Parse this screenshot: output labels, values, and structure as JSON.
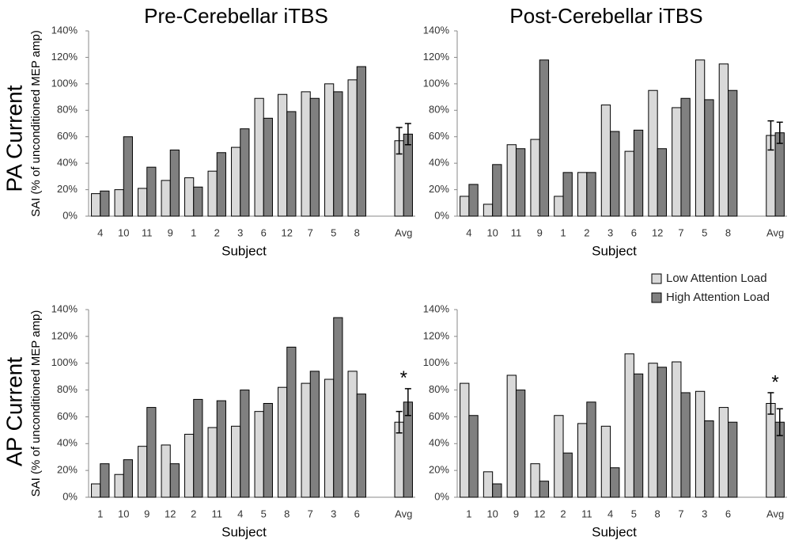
{
  "row_labels": [
    "PA Current",
    "AP Current"
  ],
  "chart_data": [
    {
      "type": "bar",
      "title": "Pre-Cerebellar iTBS",
      "xlabel": "Subject",
      "ylabel": "SAI (% of unconditioned MEP amp)",
      "categories": [
        "4",
        "10",
        "11",
        "9",
        "1",
        "2",
        "3",
        "6",
        "12",
        "7",
        "5",
        "8",
        null,
        "Avg"
      ],
      "series": [
        {
          "color": "#d9d9d9",
          "values": [
            17,
            20,
            21,
            27,
            29,
            34,
            52,
            89,
            92,
            94,
            100,
            103,
            null,
            57
          ],
          "errors": [
            null,
            null,
            null,
            null,
            null,
            null,
            null,
            null,
            null,
            null,
            null,
            null,
            null,
            10
          ]
        },
        {
          "color": "#808080",
          "values": [
            19,
            60,
            37,
            50,
            22,
            48,
            66,
            74,
            79,
            89,
            94,
            113,
            null,
            62
          ],
          "errors": [
            null,
            null,
            null,
            null,
            null,
            null,
            null,
            null,
            null,
            null,
            null,
            null,
            null,
            8
          ]
        }
      ],
      "ylim": [
        0,
        140
      ],
      "yticks": [
        {
          "value": 0,
          "label": "0%"
        },
        {
          "value": 20,
          "label": "20%"
        },
        {
          "value": 40,
          "label": "40%"
        },
        {
          "value": 60,
          "label": "60%"
        },
        {
          "value": 80,
          "label": "80%"
        },
        {
          "value": 100,
          "label": "100%"
        },
        {
          "value": 120,
          "label": "120%"
        },
        {
          "value": 140,
          "label": "140%"
        }
      ]
    },
    {
      "type": "bar",
      "title": "Post-Cerebellar iTBS",
      "xlabel": "Subject",
      "categories": [
        "4",
        "10",
        "11",
        "9",
        "1",
        "2",
        "3",
        "6",
        "12",
        "7",
        "5",
        "8",
        null,
        "Avg"
      ],
      "series": [
        {
          "color": "#d9d9d9",
          "values": [
            15,
            9,
            54,
            58,
            15,
            33,
            84,
            49,
            95,
            82,
            118,
            115,
            null,
            61
          ],
          "errors": [
            null,
            null,
            null,
            null,
            null,
            null,
            null,
            null,
            null,
            null,
            null,
            null,
            null,
            11
          ]
        },
        {
          "color": "#808080",
          "values": [
            24,
            39,
            51,
            118,
            33,
            33,
            64,
            65,
            51,
            89,
            88,
            95,
            null,
            63
          ],
          "errors": [
            null,
            null,
            null,
            null,
            null,
            null,
            null,
            null,
            null,
            null,
            null,
            null,
            null,
            8
          ]
        }
      ],
      "ylim": [
        0,
        140
      ],
      "yticks": [
        {
          "value": 0,
          "label": "0%"
        },
        {
          "value": 20,
          "label": "20%"
        },
        {
          "value": 40,
          "label": "40%"
        },
        {
          "value": 60,
          "label": "60%"
        },
        {
          "value": 80,
          "label": "80%"
        },
        {
          "value": 100,
          "label": "100%"
        },
        {
          "value": 120,
          "label": "120%"
        },
        {
          "value": 140,
          "label": "140%"
        }
      ]
    },
    {
      "type": "bar",
      "xlabel": "Subject",
      "ylabel": "SAI (% of unconditioned MEP amp)",
      "annotation": "*",
      "categories": [
        "1",
        "10",
        "9",
        "12",
        "2",
        "11",
        "4",
        "5",
        "8",
        "7",
        "3",
        "6",
        null,
        "Avg"
      ],
      "series": [
        {
          "color": "#d9d9d9",
          "values": [
            10,
            17,
            38,
            39,
            47,
            52,
            53,
            64,
            82,
            85,
            88,
            94,
            null,
            56
          ],
          "errors": [
            null,
            null,
            null,
            null,
            null,
            null,
            null,
            null,
            null,
            null,
            null,
            null,
            null,
            8
          ]
        },
        {
          "color": "#808080",
          "values": [
            25,
            28,
            67,
            25,
            73,
            72,
            80,
            70,
            112,
            94,
            134,
            77,
            null,
            71
          ],
          "errors": [
            null,
            null,
            null,
            null,
            null,
            null,
            null,
            null,
            null,
            null,
            null,
            null,
            null,
            10
          ]
        }
      ],
      "ylim": [
        0,
        140
      ],
      "yticks": [
        {
          "value": 0,
          "label": "0%"
        },
        {
          "value": 20,
          "label": "20%"
        },
        {
          "value": 40,
          "label": "40%"
        },
        {
          "value": 60,
          "label": "60%"
        },
        {
          "value": 80,
          "label": "80%"
        },
        {
          "value": 100,
          "label": "100%"
        },
        {
          "value": 120,
          "label": "120%"
        },
        {
          "value": 140,
          "label": "140%"
        }
      ]
    },
    {
      "type": "bar",
      "xlabel": "Subject",
      "annotation": "*",
      "legend": "above",
      "categories": [
        "1",
        "10",
        "9",
        "12",
        "2",
        "11",
        "4",
        "5",
        "8",
        "7",
        "3",
        "6",
        null,
        "Avg"
      ],
      "series": [
        {
          "name": "Low Attention Load",
          "color": "#d9d9d9",
          "values": [
            85,
            19,
            91,
            25,
            61,
            55,
            53,
            107,
            100,
            101,
            79,
            67,
            null,
            70
          ],
          "errors": [
            null,
            null,
            null,
            null,
            null,
            null,
            null,
            null,
            null,
            null,
            null,
            null,
            null,
            8
          ]
        },
        {
          "name": "High Attention Load",
          "color": "#808080",
          "values": [
            61,
            10,
            80,
            12,
            33,
            71,
            22,
            92,
            97,
            78,
            57,
            56,
            null,
            56
          ],
          "errors": [
            null,
            null,
            null,
            null,
            null,
            null,
            null,
            null,
            null,
            null,
            null,
            null,
            null,
            10
          ]
        }
      ],
      "ylim": [
        0,
        140
      ],
      "yticks": [
        {
          "value": 0,
          "label": "0%"
        },
        {
          "value": 20,
          "label": "20%"
        },
        {
          "value": 40,
          "label": "40%"
        },
        {
          "value": 60,
          "label": "60%"
        },
        {
          "value": 80,
          "label": "80%"
        },
        {
          "value": 100,
          "label": "100%"
        },
        {
          "value": 120,
          "label": "120%"
        },
        {
          "value": 140,
          "label": "140%"
        }
      ]
    }
  ]
}
